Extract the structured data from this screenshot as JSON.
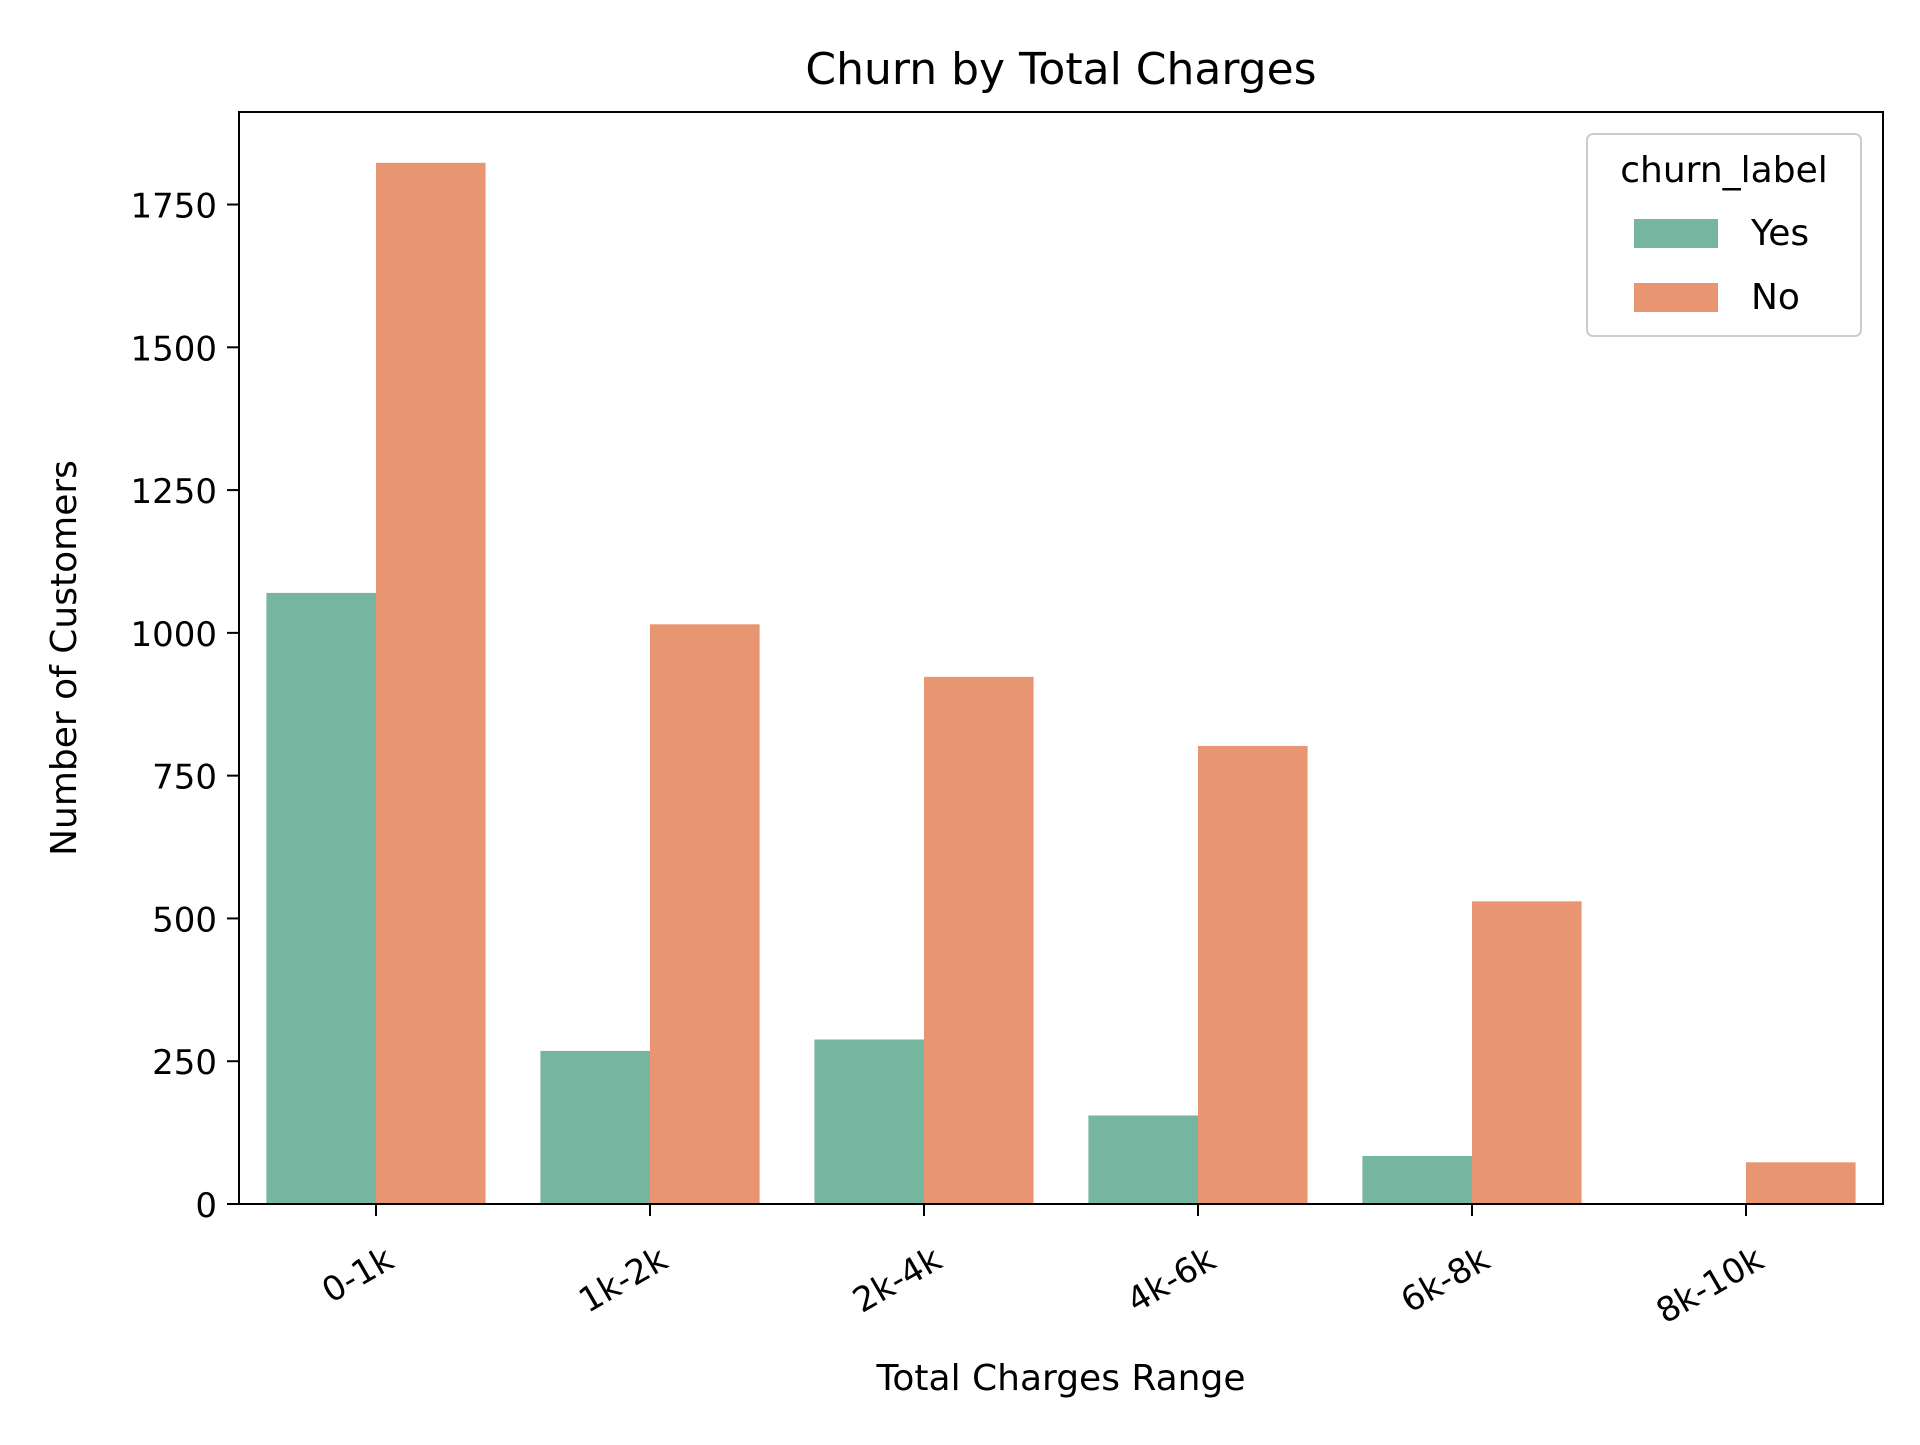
{
  "chart_data": {
    "type": "bar",
    "title": "Churn by Total Charges",
    "xlabel": "Total Charges Range",
    "ylabel": "Number of Customers",
    "categories": [
      "0-1k",
      "1k-2k",
      "2k-4k",
      "4k-6k",
      "6k-8k",
      "8k-10k"
    ],
    "series": [
      {
        "name": "Yes",
        "color": "#76b5a0",
        "values": [
          1070,
          268,
          288,
          155,
          84,
          0
        ]
      },
      {
        "name": "No",
        "color": "#e89672",
        "values": [
          1823,
          1015,
          923,
          802,
          530,
          73
        ]
      }
    ],
    "ylim": [
      0,
      1912
    ],
    "yticks": [
      0,
      250,
      500,
      750,
      1000,
      1250,
      1500,
      1750
    ],
    "grid": false,
    "legend": {
      "title": "churn_label",
      "placement": "top-right"
    }
  }
}
